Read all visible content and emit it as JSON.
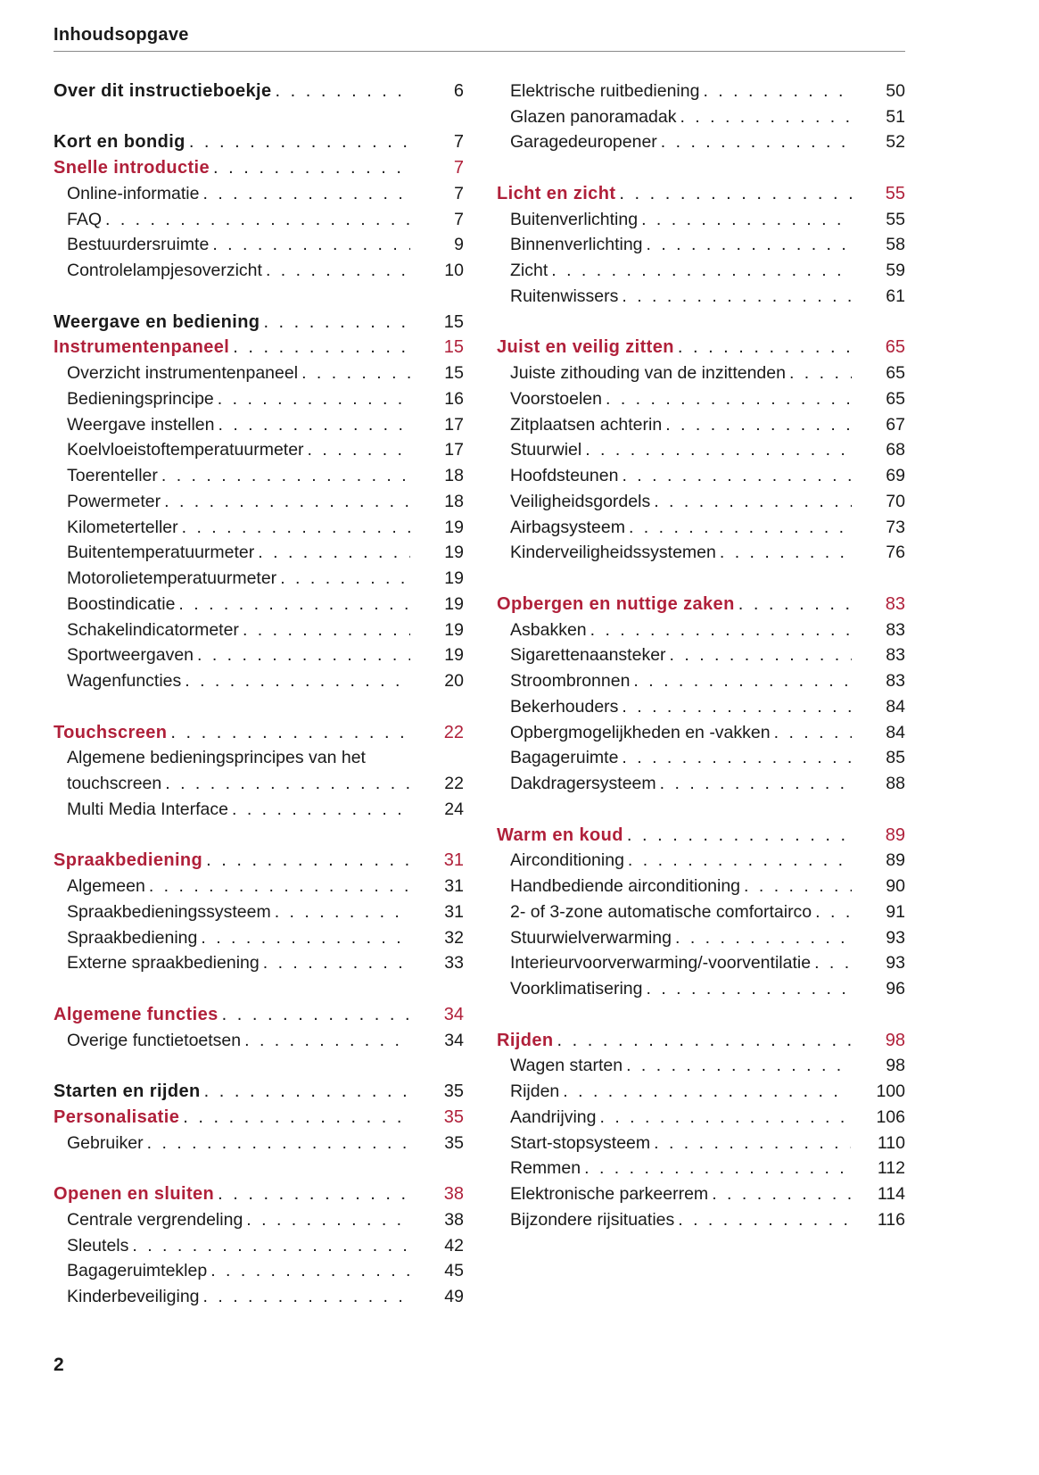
{
  "header": {
    "title": "Inhoudsopgave"
  },
  "footer": {
    "page_number": "2"
  },
  "colors": {
    "accent": "#b0203a",
    "text": "#1a1a1a"
  },
  "columns": [
    [
      {
        "title": "Over dit instructieboekje",
        "page": "6",
        "level": "chapter"
      },
      {
        "level": "blank"
      },
      {
        "title": "Kort en bondig",
        "page": "7",
        "level": "chapter"
      },
      {
        "title": "Snelle introductie",
        "page": "7",
        "level": "section"
      },
      {
        "title": "Online-informatie",
        "page": "7",
        "level": "sub"
      },
      {
        "title": "FAQ",
        "page": "7",
        "level": "sub"
      },
      {
        "title": "Bestuurdersruimte",
        "page": "9",
        "level": "sub"
      },
      {
        "title": "Controlelampjesoverzicht",
        "page": "10",
        "level": "sub"
      },
      {
        "level": "blank"
      },
      {
        "title": "Weergave en bediening",
        "page": "15",
        "level": "chapter"
      },
      {
        "title": "Instrumentenpaneel",
        "page": "15",
        "level": "section"
      },
      {
        "title": "Overzicht instrumentenpaneel",
        "page": "15",
        "level": "sub"
      },
      {
        "title": "Bedieningsprincipe",
        "page": "16",
        "level": "sub"
      },
      {
        "title": "Weergave instellen",
        "page": "17",
        "level": "sub"
      },
      {
        "title": "Koelvloeistoftemperatuurmeter",
        "page": "17",
        "level": "sub"
      },
      {
        "title": "Toerenteller",
        "page": "18",
        "level": "sub"
      },
      {
        "title": "Powermeter",
        "page": "18",
        "level": "sub"
      },
      {
        "title": "Kilometerteller",
        "page": "19",
        "level": "sub"
      },
      {
        "title": "Buitentemperatuurmeter",
        "page": "19",
        "level": "sub"
      },
      {
        "title": "Motorolietemperatuurmeter",
        "page": "19",
        "level": "sub"
      },
      {
        "title": "Boostindicatie",
        "page": "19",
        "level": "sub"
      },
      {
        "title": "Schakelindicatormeter",
        "page": "19",
        "level": "sub"
      },
      {
        "title": "Sportweergaven",
        "page": "19",
        "level": "sub"
      },
      {
        "title": "Wagenfuncties",
        "page": "20",
        "level": "sub"
      },
      {
        "level": "blank"
      },
      {
        "title": "Touchscreen",
        "page": "22",
        "level": "section"
      },
      {
        "title": "Algemene bedieningsprincipes van het",
        "page": "",
        "level": "sub",
        "nodots": true
      },
      {
        "title": "touchscreen",
        "page": "22",
        "level": "sub"
      },
      {
        "title": "Multi Media Interface",
        "page": "24",
        "level": "sub"
      },
      {
        "level": "blank"
      },
      {
        "title": "Spraakbediening",
        "page": "31",
        "level": "section"
      },
      {
        "title": "Algemeen",
        "page": "31",
        "level": "sub"
      },
      {
        "title": "Spraakbedieningssysteem",
        "page": "31",
        "level": "sub"
      },
      {
        "title": "Spraakbediening",
        "page": "32",
        "level": "sub"
      },
      {
        "title": "Externe spraakbediening",
        "page": "33",
        "level": "sub"
      },
      {
        "level": "blank"
      },
      {
        "title": "Algemene functies",
        "page": "34",
        "level": "section"
      },
      {
        "title": "Overige functietoetsen",
        "page": "34",
        "level": "sub"
      },
      {
        "level": "blank"
      },
      {
        "title": "Starten en rijden",
        "page": "35",
        "level": "chapter"
      },
      {
        "title": "Personalisatie",
        "page": "35",
        "level": "section"
      },
      {
        "title": "Gebruiker",
        "page": "35",
        "level": "sub"
      },
      {
        "level": "blank"
      },
      {
        "title": "Openen en sluiten",
        "page": "38",
        "level": "section"
      },
      {
        "title": "Centrale vergrendeling",
        "page": "38",
        "level": "sub"
      },
      {
        "title": "Sleutels",
        "page": "42",
        "level": "sub"
      },
      {
        "title": "Bagageruimteklep",
        "page": "45",
        "level": "sub"
      },
      {
        "title": "Kinderbeveiliging",
        "page": "49",
        "level": "sub"
      }
    ],
    [
      {
        "title": "Elektrische ruitbediening",
        "page": "50",
        "level": "sub"
      },
      {
        "title": "Glazen panoramadak",
        "page": "51",
        "level": "sub"
      },
      {
        "title": "Garagedeuropener",
        "page": "52",
        "level": "sub"
      },
      {
        "level": "blank"
      },
      {
        "title": "Licht en zicht",
        "page": "55",
        "level": "section"
      },
      {
        "title": "Buitenverlichting",
        "page": "55",
        "level": "sub"
      },
      {
        "title": "Binnenverlichting",
        "page": "58",
        "level": "sub"
      },
      {
        "title": "Zicht",
        "page": "59",
        "level": "sub"
      },
      {
        "title": "Ruitenwissers",
        "page": "61",
        "level": "sub"
      },
      {
        "level": "blank"
      },
      {
        "title": "Juist en veilig zitten",
        "page": "65",
        "level": "section"
      },
      {
        "title": "Juiste zithouding van de inzittenden",
        "page": "65",
        "level": "sub"
      },
      {
        "title": "Voorstoelen",
        "page": "65",
        "level": "sub"
      },
      {
        "title": "Zitplaatsen achterin",
        "page": "67",
        "level": "sub"
      },
      {
        "title": "Stuurwiel",
        "page": "68",
        "level": "sub"
      },
      {
        "title": "Hoofdsteunen",
        "page": "69",
        "level": "sub"
      },
      {
        "title": "Veiligheidsgordels",
        "page": "70",
        "level": "sub"
      },
      {
        "title": "Airbagsysteem",
        "page": "73",
        "level": "sub"
      },
      {
        "title": "Kinderveiligheidssystemen",
        "page": "76",
        "level": "sub"
      },
      {
        "level": "blank"
      },
      {
        "title": "Opbergen en nuttige zaken",
        "page": "83",
        "level": "section"
      },
      {
        "title": "Asbakken",
        "page": "83",
        "level": "sub"
      },
      {
        "title": "Sigarettenaansteker",
        "page": "83",
        "level": "sub"
      },
      {
        "title": "Stroombronnen",
        "page": "83",
        "level": "sub"
      },
      {
        "title": "Bekerhouders",
        "page": "84",
        "level": "sub"
      },
      {
        "title": "Opbergmogelijkheden en -vakken",
        "page": "84",
        "level": "sub"
      },
      {
        "title": "Bagageruimte",
        "page": "85",
        "level": "sub"
      },
      {
        "title": "Dakdragersysteem",
        "page": "88",
        "level": "sub"
      },
      {
        "level": "blank"
      },
      {
        "title": "Warm en koud",
        "page": "89",
        "level": "section"
      },
      {
        "title": "Airconditioning",
        "page": "89",
        "level": "sub"
      },
      {
        "title": "Handbediende airconditioning",
        "page": "90",
        "level": "sub"
      },
      {
        "title": "2- of 3-zone automatische comfortairco",
        "page": "91",
        "level": "sub"
      },
      {
        "title": "Stuurwielverwarming",
        "page": "93",
        "level": "sub"
      },
      {
        "title": "Interieurvoorverwarming/-voorventilatie",
        "page": "93",
        "level": "sub"
      },
      {
        "title": "Voorklimatisering",
        "page": "96",
        "level": "sub"
      },
      {
        "level": "blank"
      },
      {
        "title": "Rijden",
        "page": "98",
        "level": "section"
      },
      {
        "title": "Wagen starten",
        "page": "98",
        "level": "sub"
      },
      {
        "title": "Rijden",
        "page": "100",
        "level": "sub"
      },
      {
        "title": "Aandrijving",
        "page": "106",
        "level": "sub"
      },
      {
        "title": "Start-stopsysteem",
        "page": "110",
        "level": "sub"
      },
      {
        "title": "Remmen",
        "page": "112",
        "level": "sub"
      },
      {
        "title": "Elektronische parkeerrem",
        "page": "114",
        "level": "sub"
      },
      {
        "title": "Bijzondere rijsituaties",
        "page": "116",
        "level": "sub"
      }
    ]
  ]
}
